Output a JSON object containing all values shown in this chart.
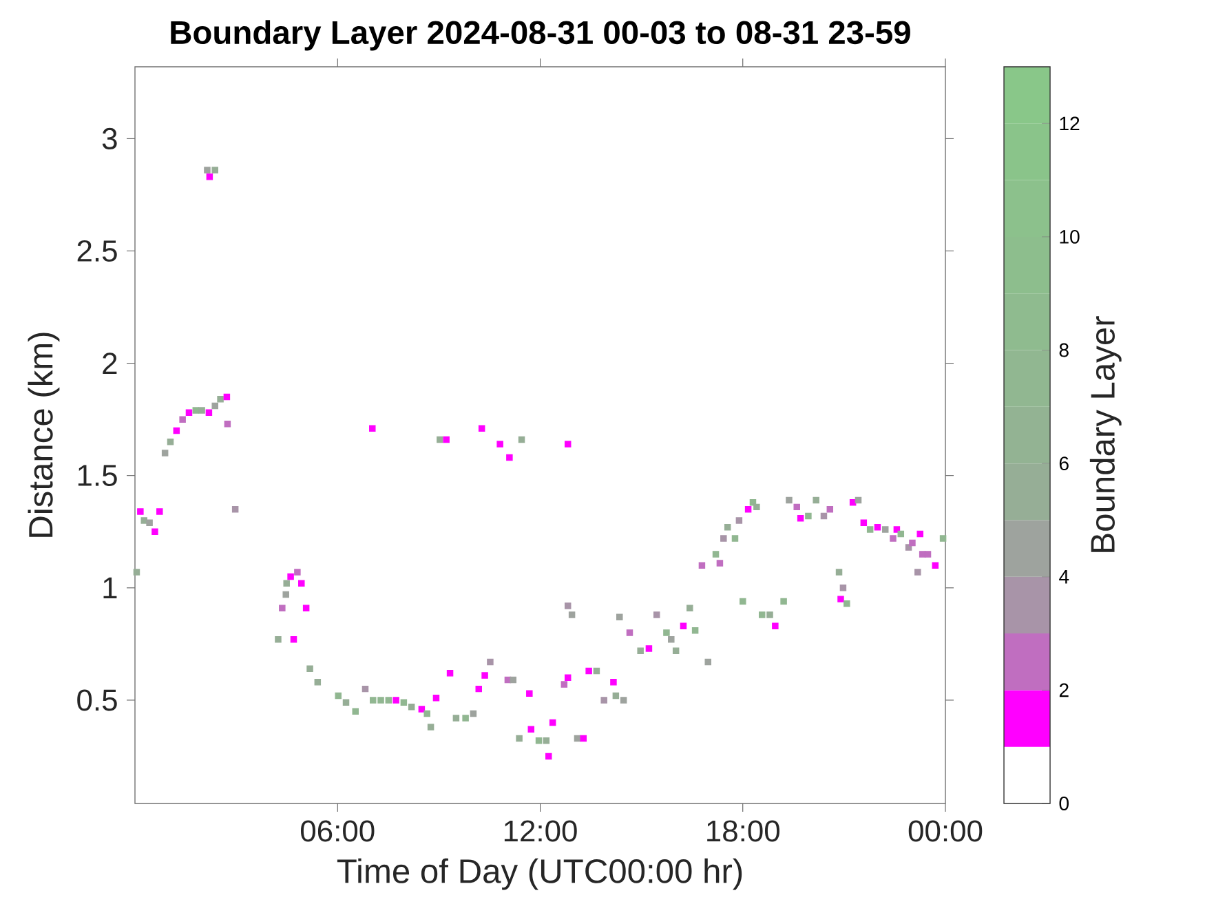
{
  "chart_data": {
    "type": "scatter",
    "title": "Boundary Layer 2024-08-31 00-03 to 08-31 23-59",
    "xlabel": "Time of Day (UTC00:00 hr)",
    "ylabel": "Distance (km)",
    "clabel": "Boundary Layer",
    "marker": "square",
    "xlim": [
      0,
      24
    ],
    "ylim": [
      0.04,
      3.32
    ],
    "xticks": [
      {
        "value": 6,
        "label": "06:00"
      },
      {
        "value": 12,
        "label": "12:00"
      },
      {
        "value": 18,
        "label": "18:00"
      },
      {
        "value": 24,
        "label": "00:00"
      }
    ],
    "yticks": [
      0.5,
      1,
      1.5,
      2,
      2.5,
      3
    ],
    "clim": [
      0,
      13
    ],
    "cticks": [
      0,
      2,
      4,
      6,
      8,
      10,
      12
    ],
    "x": [
      0.05,
      0.16,
      0.27,
      0.43,
      0.59,
      0.73,
      0.89,
      1.05,
      1.23,
      1.41,
      1.6,
      1.8,
      1.98,
      2.19,
      2.37,
      2.53,
      2.72,
      2.74,
      2.14,
      2.21,
      2.37,
      2.97,
      4.24,
      4.7,
      4.36,
      4.49,
      4.61,
      4.81,
      4.93,
      5.07,
      4.47,
      5.18,
      5.41,
      6.02,
      6.25,
      6.53,
      6.82,
      7.05,
      7.28,
      7.51,
      7.73,
      7.96,
      8.19,
      8.49,
      8.65,
      8.76,
      8.92,
      9.33,
      9.51,
      9.79,
      10.02,
      10.18,
      10.36,
      10.52,
      11.04,
      11.2,
      11.68,
      11.38,
      11.73,
      11.96,
      12.18,
      12.25,
      12.37,
      12.71,
      12.82,
      7.03,
      9.03,
      9.22,
      10.27,
      10.81,
      11.09,
      11.45,
      12.82,
      12.82,
      12.94,
      13.1,
      13.28,
      13.44,
      13.67,
      13.89,
      14.17,
      14.24,
      14.47,
      14.35,
      14.65,
      14.97,
      15.22,
      15.45,
      15.74,
      15.88,
      16.02,
      16.24,
      16.43,
      16.59,
      16.79,
      16.97,
      17.2,
      17.32,
      17.43,
      17.55,
      17.77,
      17.89,
      18.0,
      18.16,
      18.3,
      18.41,
      18.57,
      18.8,
      18.96,
      19.21,
      19.37,
      19.6,
      19.71,
      19.94,
      20.17,
      20.4,
      20.58,
      20.85,
      20.97,
      20.9,
      21.08,
      21.26,
      21.42,
      21.58,
      21.77,
      21.99,
      22.22,
      22.45,
      22.56,
      22.68,
      22.91,
      23.02,
      23.25,
      23.32,
      23.18,
      23.48,
      23.7,
      23.93
    ],
    "values": [
      1.07,
      1.34,
      1.3,
      1.29,
      1.25,
      1.34,
      1.6,
      1.65,
      1.7,
      1.75,
      1.78,
      1.79,
      1.79,
      1.78,
      1.81,
      1.84,
      1.85,
      1.73,
      2.86,
      2.83,
      2.86,
      1.35,
      0.77,
      0.77,
      0.91,
      1.02,
      1.05,
      1.07,
      1.02,
      0.91,
      0.97,
      0.64,
      0.58,
      0.52,
      0.49,
      0.45,
      0.55,
      0.5,
      0.5,
      0.5,
      0.5,
      0.49,
      0.47,
      0.46,
      0.44,
      0.38,
      0.51,
      0.62,
      0.42,
      0.42,
      0.44,
      0.55,
      0.61,
      0.67,
      0.59,
      0.59,
      0.53,
      0.33,
      0.37,
      0.32,
      0.32,
      0.25,
      0.4,
      0.57,
      0.6,
      1.71,
      1.66,
      1.66,
      1.71,
      1.64,
      1.58,
      1.66,
      1.64,
      0.92,
      0.88,
      0.33,
      0.33,
      0.63,
      0.63,
      0.5,
      0.58,
      0.52,
      0.5,
      0.87,
      0.8,
      0.72,
      0.73,
      0.88,
      0.8,
      0.77,
      0.72,
      0.83,
      0.91,
      0.81,
      1.1,
      0.67,
      1.15,
      1.11,
      1.22,
      1.27,
      1.22,
      1.3,
      0.94,
      1.35,
      1.38,
      1.36,
      0.88,
      0.88,
      0.83,
      0.94,
      1.39,
      1.36,
      1.31,
      1.32,
      1.39,
      1.32,
      1.35,
      1.07,
      1.0,
      0.95,
      0.93,
      1.38,
      1.39,
      1.29,
      1.26,
      1.27,
      1.26,
      1.22,
      1.26,
      1.24,
      1.18,
      1.2,
      1.24,
      1.15,
      1.07,
      1.15,
      1.1,
      1.22
    ],
    "cvalues": [
      5.5,
      1.5,
      5.5,
      4.5,
      1.5,
      1.5,
      4.5,
      5.5,
      1.5,
      2.5,
      1.5,
      7,
      5.5,
      1.5,
      4.5,
      5.5,
      1.5,
      2.5,
      4.5,
      1.5,
      5.5,
      3.5,
      5.5,
      1.5,
      2.5,
      5.5,
      1.5,
      2.5,
      1.5,
      1.5,
      4.5,
      5.5,
      5.5,
      7,
      5.5,
      7,
      3.5,
      7,
      7,
      7,
      1.5,
      7,
      5.5,
      1.5,
      7,
      5.5,
      1.5,
      1.5,
      5.5,
      7,
      4.5,
      1.5,
      1.5,
      3.5,
      2.5,
      4.5,
      1.5,
      5.5,
      1.5,
      7,
      5.5,
      1.5,
      1.5,
      2.5,
      1.5,
      1.5,
      5.5,
      1.5,
      1.5,
      1.5,
      1.5,
      5.5,
      1.5,
      3.5,
      4.5,
      4.5,
      1.5,
      1.5,
      5.5,
      3.5,
      1.5,
      5.5,
      4.5,
      4.5,
      2.5,
      5.5,
      1.5,
      3.5,
      7,
      4.5,
      5.5,
      1.5,
      5.5,
      7,
      2.5,
      4.5,
      7,
      2.5,
      3.5,
      5.5,
      7,
      3.5,
      7,
      1.5,
      7,
      5.5,
      7,
      5.5,
      1.5,
      7,
      4.5,
      2.5,
      1.5,
      7,
      5.5,
      3.5,
      2.5,
      5.5,
      3.5,
      1.5,
      7,
      1.5,
      4.5,
      1.5,
      7,
      1.5,
      4.5,
      2.5,
      1.5,
      7,
      3.5,
      2.5,
      1.5,
      2.5,
      3.5,
      2.5,
      1.5,
      7
    ]
  }
}
